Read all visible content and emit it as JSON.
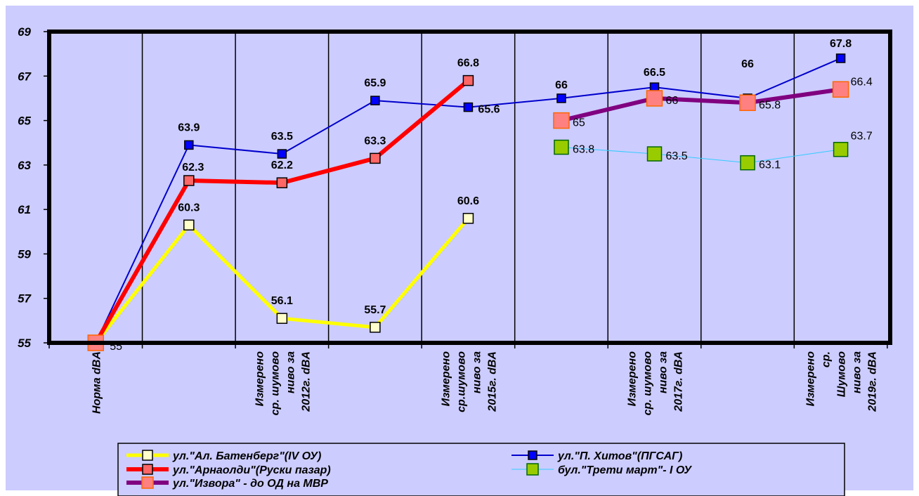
{
  "chart_data": {
    "type": "line",
    "title": "",
    "xlabel": "",
    "ylabel": "",
    "ylim": [
      55,
      69
    ],
    "y_ticks": [
      "55",
      "57",
      "59",
      "61",
      "63",
      "65",
      "67",
      "69"
    ],
    "grid": "vertical",
    "legend_position": "bottom",
    "background": "#ccccff",
    "categories": [
      "Норма dBA",
      "",
      "Измерено ср. шумово ниво за 2012г. dBA",
      "",
      "Измерено ср.шумово ниво за 2015г. dBA",
      "",
      "Измерено ср. шумово ниво за 2017г. dBA",
      "",
      "Измерено ср. Шумово ниво за 2019г. dBA"
    ],
    "category_lines": [
      [
        "Норма dBA"
      ],
      [],
      [
        "Измерено",
        "ср. шумово",
        "ниво за",
        "2012г. dBA"
      ],
      [],
      [
        "Измерено",
        "ср.шумово",
        "ниво за",
        "2015г. dBA"
      ],
      [],
      [
        "Измерено",
        "ср. шумово",
        "ниво за",
        "2017г. dBA"
      ],
      [],
      [
        "Измерено",
        "ср.",
        "Шумово",
        "ниво за",
        "2019г. dBA"
      ]
    ],
    "series": [
      {
        "name": "ул.\"Ал. Батенберг\"(IV ОУ)",
        "color": "#ffff00",
        "marker_fill": "#ffffcc",
        "values": [
          55,
          60.3,
          56.1,
          55.7,
          60.6,
          null,
          null,
          null,
          null
        ],
        "labels": [
          "",
          "60.3",
          "56.1",
          "55.7",
          "60.6",
          "",
          "",
          "",
          ""
        ]
      },
      {
        "name": "ул.\"П. Хитов\"(ПГСАГ)",
        "color": "#0000cc",
        "marker_fill": "#0000ff",
        "values": [
          55,
          63.9,
          63.5,
          65.9,
          65.6,
          66,
          66.5,
          66,
          67.8
        ],
        "labels": [
          "",
          "63.9",
          "63.5",
          "65.9",
          "65.6",
          "66",
          "66.5",
          "66",
          "67.8"
        ]
      },
      {
        "name": "ул.\"Арнаолди\"(Руски пазар)",
        "color": "#ff0000",
        "marker_fill": "#ff6666",
        "values": [
          55,
          62.3,
          62.2,
          63.3,
          66.8,
          null,
          null,
          null,
          null
        ],
        "labels": [
          "",
          "62.3",
          "62.2",
          "63.3",
          "66.8",
          "",
          "",
          "",
          ""
        ]
      },
      {
        "name": "бул.\"Трети март\"- I ОУ",
        "color": "#33ccff",
        "marker_fill": "#99cc00",
        "values": [
          null,
          null,
          null,
          null,
          null,
          63.8,
          63.5,
          63.1,
          63.7
        ],
        "labels": [
          "",
          "",
          "",
          "",
          "",
          "63.8",
          "63.5",
          "63.1",
          "63.7"
        ]
      },
      {
        "name": "ул.\"Извора\" - до ОД на МВР",
        "color": "#800080",
        "marker_fill": "#ff8080",
        "values": [
          55,
          null,
          null,
          null,
          null,
          65,
          66,
          65.8,
          66.4
        ],
        "labels": [
          "55",
          "",
          "",
          "",
          "",
          "65",
          "66",
          "65.8",
          "66.4"
        ]
      }
    ]
  }
}
